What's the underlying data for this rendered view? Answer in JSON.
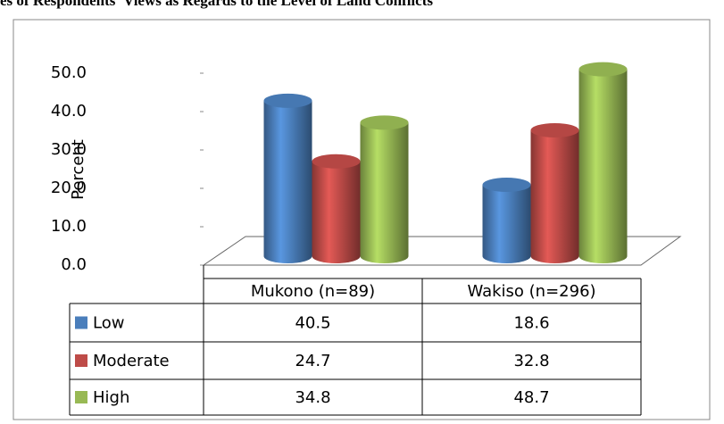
{
  "chart_data": {
    "type": "bar3d",
    "title": "es of Respondents' Views as Regards to the Level of Land Conflicts",
    "ylabel": "Percent",
    "categories": [
      "Mukono (n=89)",
      "Wakiso (n=296)"
    ],
    "series": [
      {
        "name": "Low",
        "color": "#4a7ebb",
        "values": [
          40.5,
          18.6
        ]
      },
      {
        "name": "Moderate",
        "color": "#be4b48",
        "values": [
          24.7,
          32.8
        ]
      },
      {
        "name": "High",
        "color": "#98b954",
        "values": [
          34.8,
          48.7
        ]
      }
    ],
    "ylim": [
      0,
      50
    ],
    "yticks": [
      {
        "value": 0,
        "label": "0.0"
      },
      {
        "value": 10,
        "label": "10.0"
      },
      {
        "value": 20,
        "label": "20.0"
      },
      {
        "value": 30,
        "label": "30.0"
      },
      {
        "value": 40,
        "label": "40.0"
      },
      {
        "value": 50,
        "label": "50.0"
      }
    ],
    "data_table": true
  }
}
